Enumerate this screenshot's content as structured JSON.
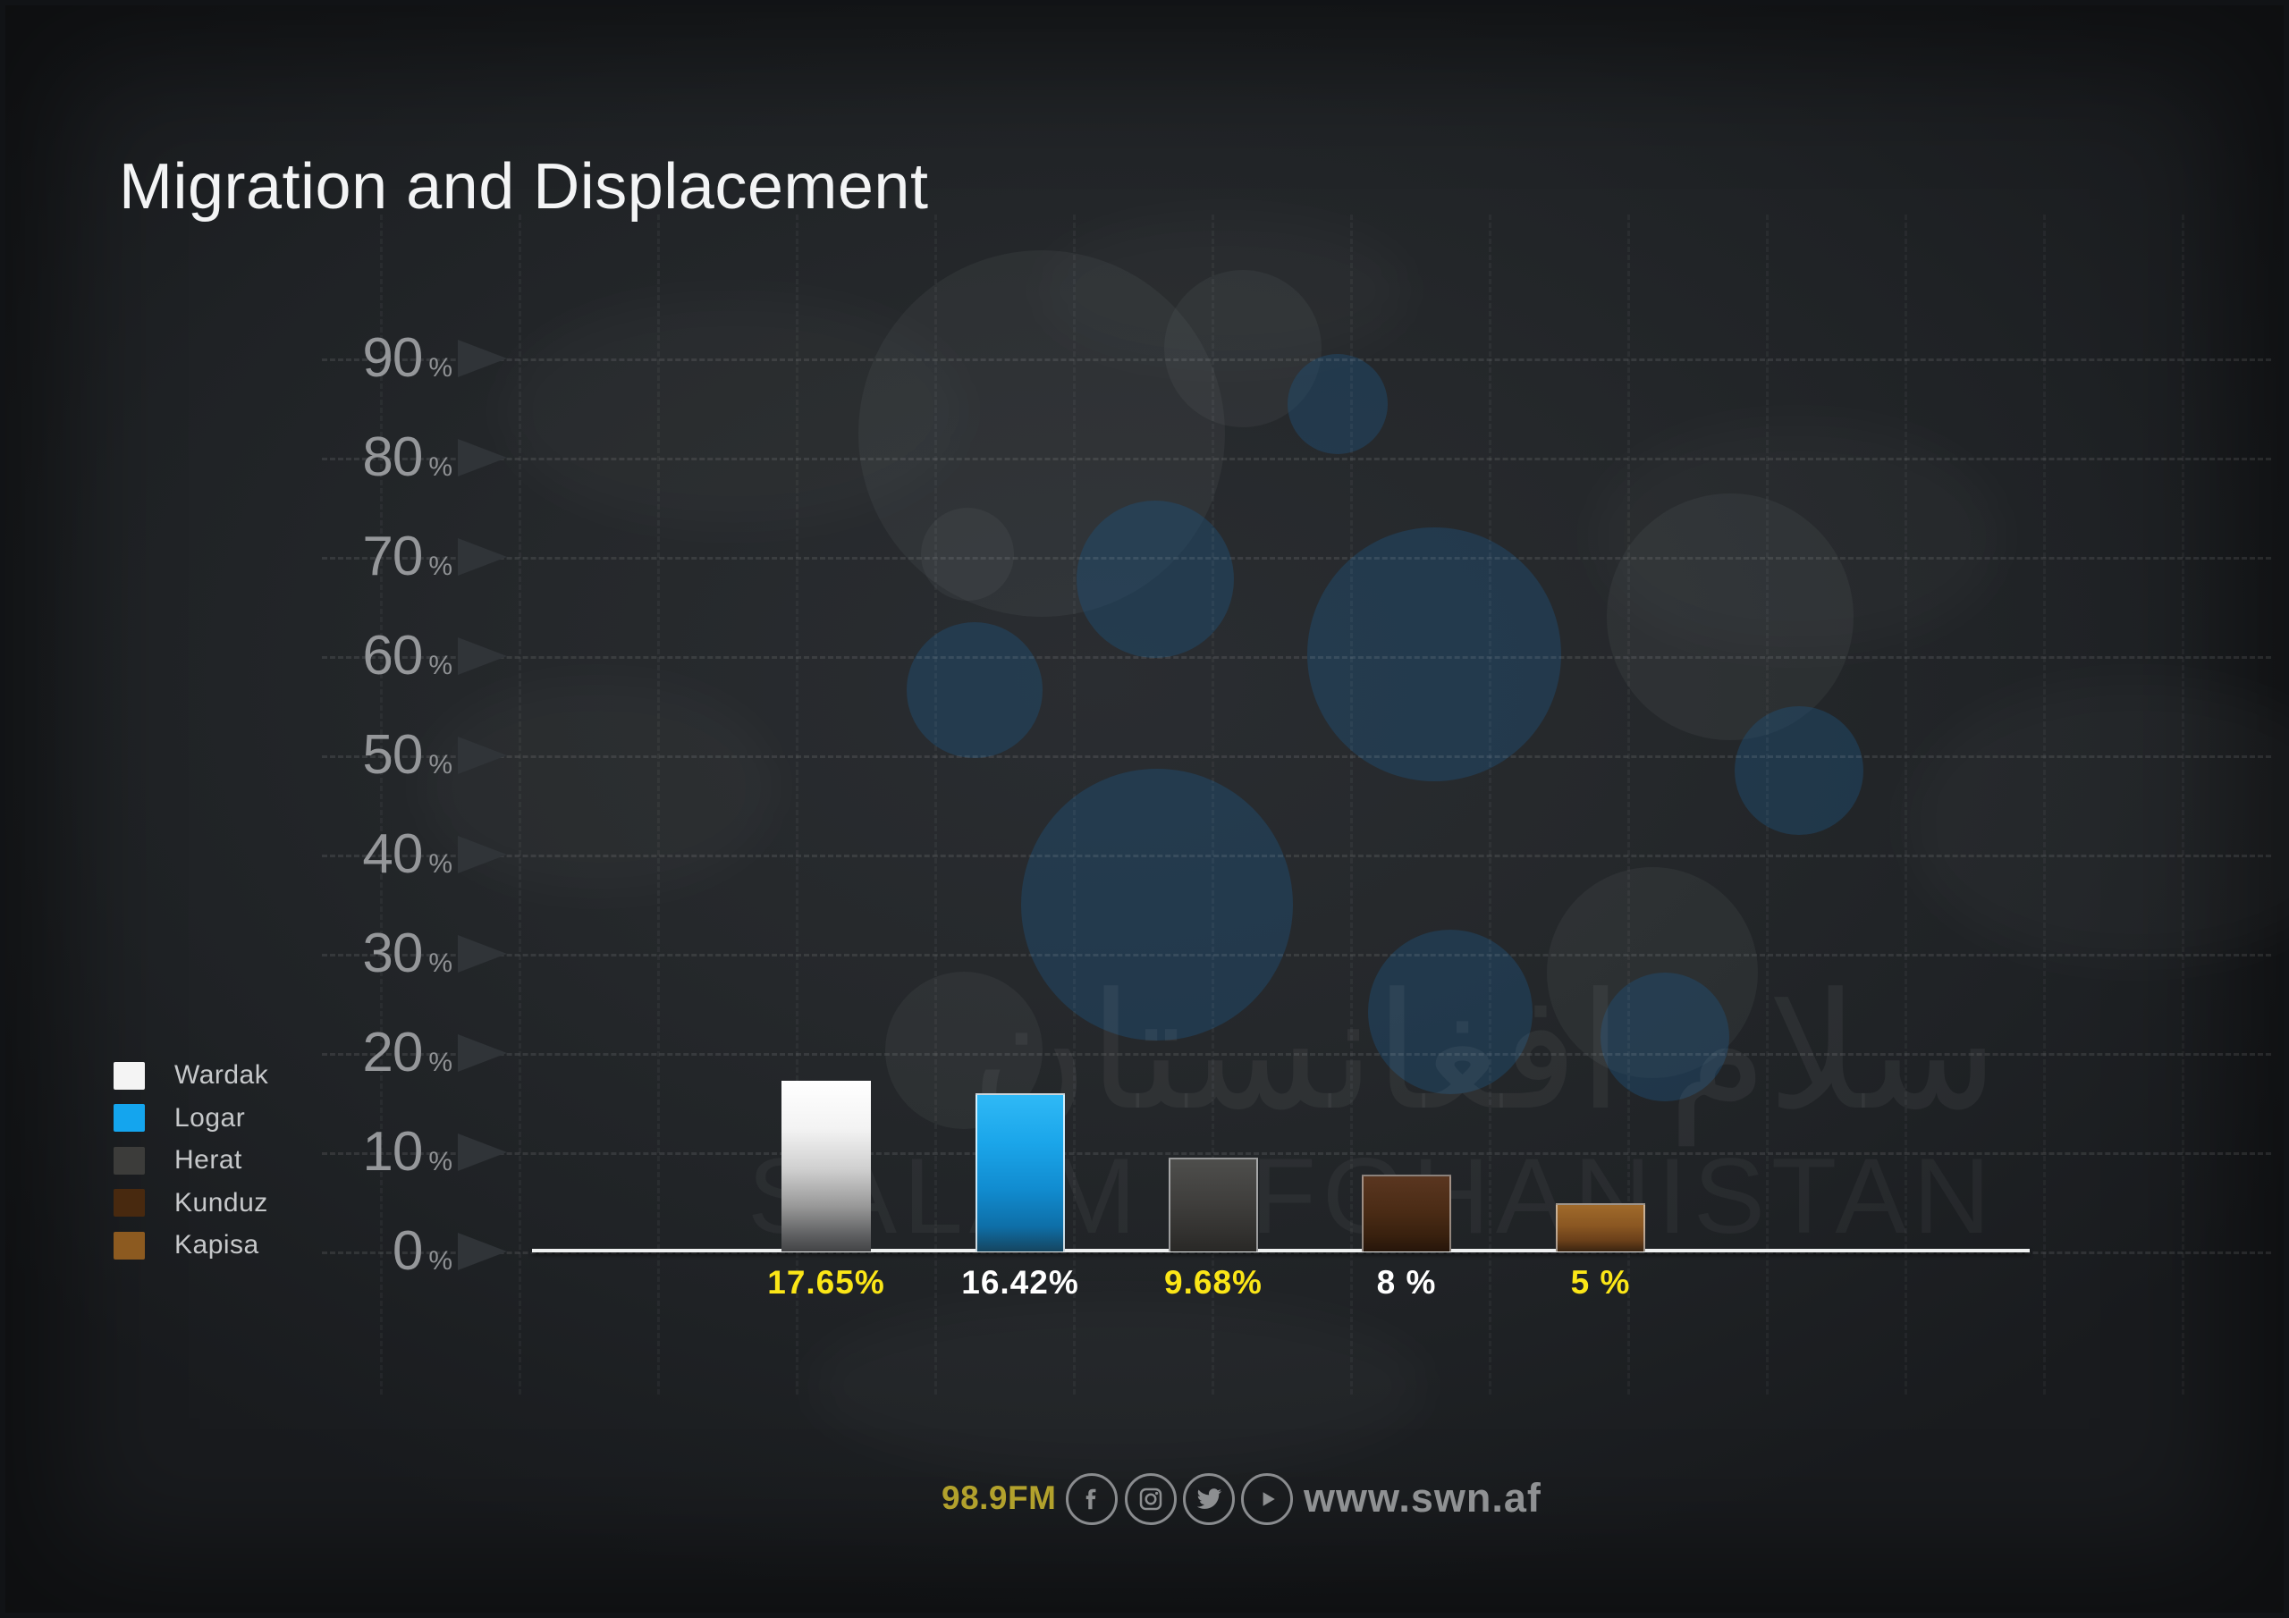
{
  "title": "Migration and Displacement",
  "watermark": {
    "arabic": "سلام افغانستان",
    "latin": "SALAM AFGHANISTAN"
  },
  "chart_data": {
    "type": "bar",
    "title": "Migration and Displacement",
    "categories": [
      "Wardak",
      "Logar",
      "Herat",
      "Kunduz",
      "Kapisa"
    ],
    "values": [
      17.65,
      16.42,
      9.68,
      8,
      5
    ],
    "value_labels": [
      "17.65%",
      "16.42%",
      "9.68%",
      "8 %",
      "5 %"
    ],
    "value_label_colors": [
      "#fbe617",
      "#ffffff",
      "#fbe617",
      "#ffffff",
      "#fbe617"
    ],
    "bar_colors": [
      "#f4f4f4",
      "#14a5ee",
      "#434341",
      "#4a2b15",
      "#8a5722"
    ],
    "xlabel": "",
    "ylabel": "",
    "ylim": [
      0,
      96
    ],
    "yticks": [
      0,
      10,
      20,
      30,
      40,
      50,
      60,
      70,
      80,
      90
    ],
    "tick_unit": "%",
    "grid": true,
    "legend_position": "left",
    "legend": [
      {
        "label": "Wardak",
        "color": "#f4f4f4"
      },
      {
        "label": "Logar",
        "color": "#14a5ee"
      },
      {
        "label": "Herat",
        "color": "#3c3c3a"
      },
      {
        "label": "Kunduz",
        "color": "#48290f"
      },
      {
        "label": "Kapisa",
        "color": "#8c5a20"
      }
    ]
  },
  "footer": {
    "frequency": "98.9FM",
    "website": "www.swn.af",
    "social_icons": [
      "facebook-icon",
      "instagram-icon",
      "twitter-icon",
      "youtube-icon"
    ]
  }
}
